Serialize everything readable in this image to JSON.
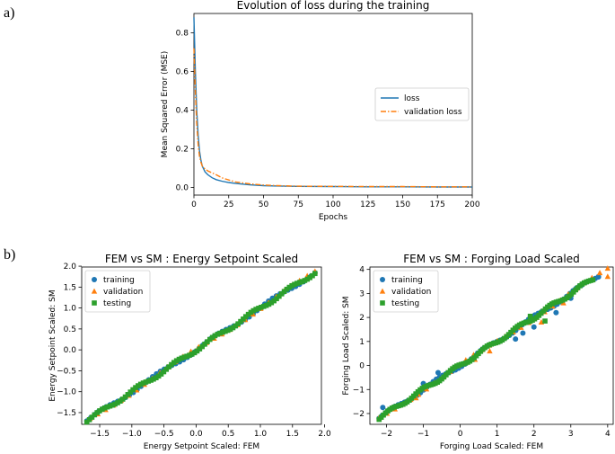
{
  "panel_labels": {
    "a": "a)",
    "b": "b)"
  },
  "colors": {
    "blue": "#1f77b4",
    "orange": "#ff7f0e",
    "green": "#2ca02c"
  },
  "chart_data": [
    {
      "type": "line",
      "title": "Evolution of loss during the training",
      "xlabel": "Epochs",
      "ylabel": "Mean Squared Error (MSE)",
      "xlim": [
        0,
        200
      ],
      "ylim": [
        -0.04,
        0.9
      ],
      "xticks": [
        0,
        25,
        50,
        75,
        100,
        125,
        150,
        175,
        200
      ],
      "yticks": [
        0.0,
        0.2,
        0.4,
        0.6,
        0.8
      ],
      "legend_position": "center-right",
      "series": [
        {
          "name": "loss",
          "style": "solid",
          "color": "#1f77b4",
          "x": [
            0,
            1,
            2,
            3,
            4,
            5,
            6,
            8,
            10,
            13,
            16,
            20,
            25,
            30,
            40,
            50,
            60,
            75,
            100,
            125,
            150,
            175,
            200
          ],
          "y": [
            0.88,
            0.6,
            0.4,
            0.27,
            0.19,
            0.14,
            0.11,
            0.08,
            0.065,
            0.05,
            0.04,
            0.032,
            0.025,
            0.02,
            0.013,
            0.009,
            0.007,
            0.005,
            0.004,
            0.003,
            0.003,
            0.002,
            0.002
          ]
        },
        {
          "name": "validation loss",
          "style": "dashdot",
          "color": "#ff7f0e",
          "x": [
            0,
            1,
            2,
            3,
            4,
            5,
            6,
            8,
            10,
            13,
            16,
            20,
            25,
            30,
            40,
            50,
            60,
            75,
            100,
            125,
            150,
            175,
            200
          ],
          "y": [
            0.72,
            0.5,
            0.33,
            0.22,
            0.16,
            0.13,
            0.11,
            0.095,
            0.085,
            0.075,
            0.065,
            0.05,
            0.038,
            0.028,
            0.018,
            0.012,
            0.009,
            0.006,
            0.005,
            0.004,
            0.004,
            0.003,
            0.003
          ]
        }
      ]
    },
    {
      "type": "scatter",
      "title": "FEM vs SM : Energy Setpoint Scaled",
      "xlabel": "Energy Setpoint Scaled: FEM",
      "ylabel": "Energy Setpoint Scaled: SM",
      "xlim": [
        -1.78,
        1.95
      ],
      "ylim": [
        -1.78,
        1.98
      ],
      "xticks": [
        -1.5,
        -1.0,
        -0.5,
        0.0,
        0.5,
        1.0,
        1.5,
        2.0
      ],
      "yticks": [
        -1.5,
        -1.0,
        -0.5,
        0.0,
        0.5,
        1.0,
        1.5,
        2.0
      ],
      "legend_position": "upper-left",
      "series": [
        {
          "name": "training",
          "marker": "circle",
          "color": "#1f77b4",
          "range": [
            -1.7,
            1.85
          ],
          "count": 60,
          "deviation": []
        },
        {
          "name": "validation",
          "marker": "triangle",
          "color": "#ff7f0e",
          "range": [
            -1.65,
            1.85
          ],
          "count": 30,
          "deviation": []
        },
        {
          "name": "testing",
          "marker": "square",
          "color": "#2ca02c",
          "range": [
            -1.7,
            1.85
          ],
          "count": 90,
          "deviation": []
        }
      ]
    },
    {
      "type": "scatter",
      "title": "FEM vs SM : Forging Load Scaled",
      "xlabel": "Forging Load Scaled: FEM",
      "ylabel": "Forging Load Scaled: SM",
      "xlim": [
        -2.45,
        4.15
      ],
      "ylim": [
        -2.45,
        4.1
      ],
      "xticks": [
        -2,
        -1,
        0,
        1,
        2,
        3,
        4
      ],
      "yticks": [
        -2,
        -1,
        0,
        1,
        2,
        3,
        4
      ],
      "legend_position": "upper-left",
      "series": [
        {
          "name": "training",
          "marker": "circle",
          "color": "#1f77b4",
          "range": [
            -2.2,
            3.75
          ],
          "count": 70,
          "deviation": [
            [
              -2.1,
              -1.75
            ],
            [
              -1.0,
              -0.75
            ],
            [
              -0.6,
              -0.3
            ],
            [
              1.5,
              1.1
            ],
            [
              1.7,
              1.35
            ],
            [
              2.0,
              1.6
            ],
            [
              2.6,
              2.2
            ],
            [
              3.0,
              2.8
            ],
            [
              3.3,
              3.35
            ],
            [
              3.75,
              3.7
            ]
          ]
        },
        {
          "name": "validation",
          "marker": "triangle",
          "color": "#ff7f0e",
          "range": [
            -2.2,
            4.0
          ],
          "count": 30,
          "deviation": [
            [
              -1.2,
              -1.35
            ],
            [
              0.8,
              0.6
            ],
            [
              2.2,
              1.8
            ],
            [
              2.8,
              2.6
            ],
            [
              4.0,
              3.7
            ],
            [
              0.4,
              0.25
            ]
          ]
        },
        {
          "name": "testing",
          "marker": "square",
          "color": "#2ca02c",
          "range": [
            -2.2,
            3.6
          ],
          "count": 100,
          "deviation": [
            [
              2.3,
              1.85
            ],
            [
              1.9,
              2.05
            ]
          ]
        }
      ]
    }
  ]
}
